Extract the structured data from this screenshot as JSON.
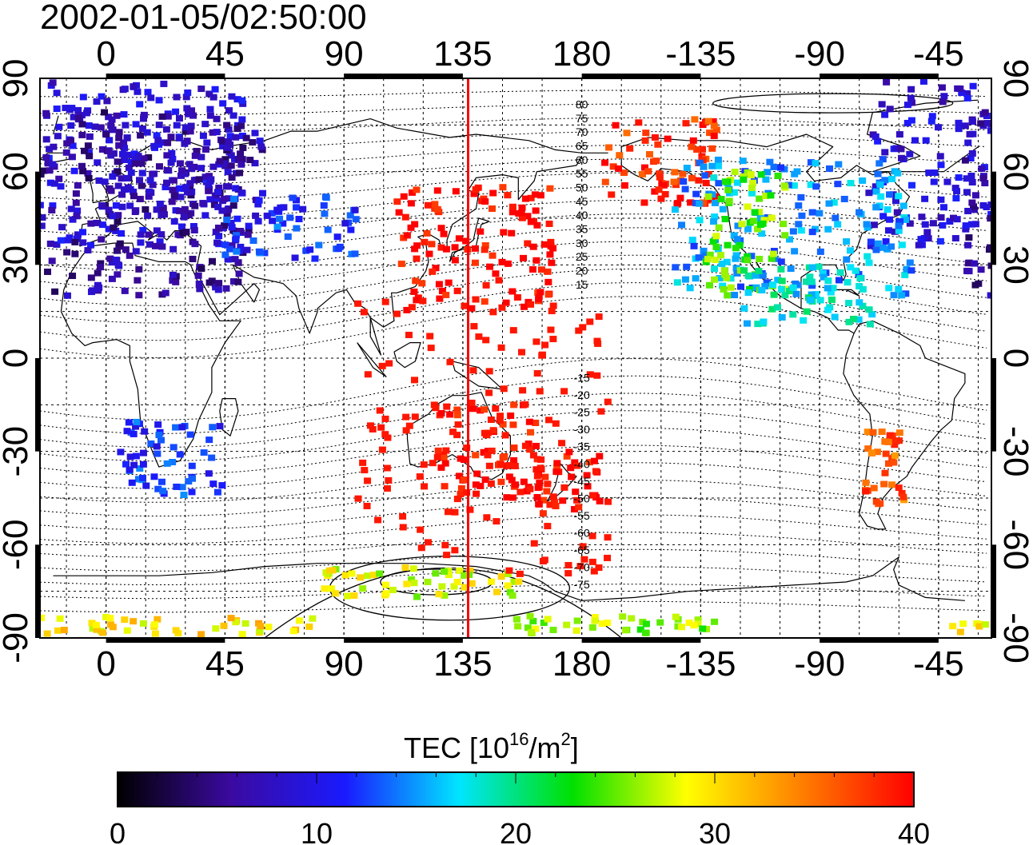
{
  "title": "2002-01-05/02:50:00",
  "map": {
    "top_lon_ticks": [
      "0",
      "45",
      "90",
      "135",
      "180",
      "-135",
      "-90",
      "-45"
    ],
    "bottom_lon_ticks": [
      "0",
      "45",
      "90",
      "135",
      "180",
      "-135",
      "-90",
      "-45"
    ],
    "left_lat_ticks": [
      "90",
      "60",
      "30",
      "0",
      "-30",
      "-60",
      "-90"
    ],
    "right_lat_ticks": [
      "90",
      "60",
      "30",
      "0",
      "-30",
      "-60",
      "-90"
    ],
    "terminator_lon": 137,
    "terminator_color": "#ff0000"
  },
  "contour_labels": {
    "north": [
      "80",
      "75",
      "70",
      "65",
      "60",
      "55",
      "50",
      "45",
      "40",
      "35",
      "30",
      "25",
      "20",
      "15"
    ],
    "south": [
      "-15",
      "-20",
      "-25",
      "-30",
      "-35",
      "-40",
      "-45",
      "-50",
      "-55",
      "-60",
      "-65",
      "-70",
      "-75"
    ]
  },
  "colorbar": {
    "label_main": "TEC  [10",
    "label_sup1": "16",
    "label_mid": "/m",
    "label_sup2": "2",
    "label_end": "]",
    "tick_labels": [
      "0",
      "10",
      "20",
      "30",
      "40"
    ],
    "min": 0,
    "max": 40,
    "stops": [
      "#000000",
      "#3b0aa0",
      "#1a1aff",
      "#00e5ff",
      "#00e000",
      "#ffff00",
      "#ff8000",
      "#ff0000"
    ]
  },
  "tec_regions": [
    {
      "lon": -10,
      "lat": 66,
      "w": 62,
      "h": 30,
      "tec": 9
    },
    {
      "lon": 10,
      "lat": 50,
      "w": 45,
      "h": 30,
      "tec": 6
    },
    {
      "lon": 30,
      "lat": 60,
      "w": 30,
      "h": 15,
      "tec": 7
    },
    {
      "lon": 70,
      "lat": 42,
      "w": 25,
      "h": 10,
      "tec": 12
    },
    {
      "lon": 140,
      "lat": 35,
      "w": 30,
      "h": 20,
      "tec": 40
    },
    {
      "lon": -150,
      "lat": 63,
      "w": 22,
      "h": 14,
      "tec": 38
    },
    {
      "lon": -100,
      "lat": 42,
      "w": 45,
      "h": 22,
      "tec": 15
    },
    {
      "lon": -118,
      "lat": 40,
      "w": 15,
      "h": 20,
      "tec": 25
    },
    {
      "lon": -95,
      "lat": 20,
      "w": 25,
      "h": 10,
      "tec": 18
    },
    {
      "lon": 25,
      "lat": -32,
      "w": 20,
      "h": 12,
      "tec": 12
    },
    {
      "lon": 175,
      "lat": -40,
      "w": 12,
      "h": 10,
      "tec": 40
    },
    {
      "lon": -65,
      "lat": -35,
      "w": 8,
      "h": 12,
      "tec": 36
    },
    {
      "lon": 145,
      "lat": -30,
      "w": 20,
      "h": 15,
      "tec": 40
    },
    {
      "lon": 20,
      "lat": -86,
      "w": 60,
      "h": 3,
      "tec": 30
    },
    {
      "lon": -165,
      "lat": -86,
      "w": 40,
      "h": 3,
      "tec": 26
    },
    {
      "lon": 120,
      "lat": -72,
      "w": 40,
      "h": 5,
      "tec": 28
    }
  ]
}
